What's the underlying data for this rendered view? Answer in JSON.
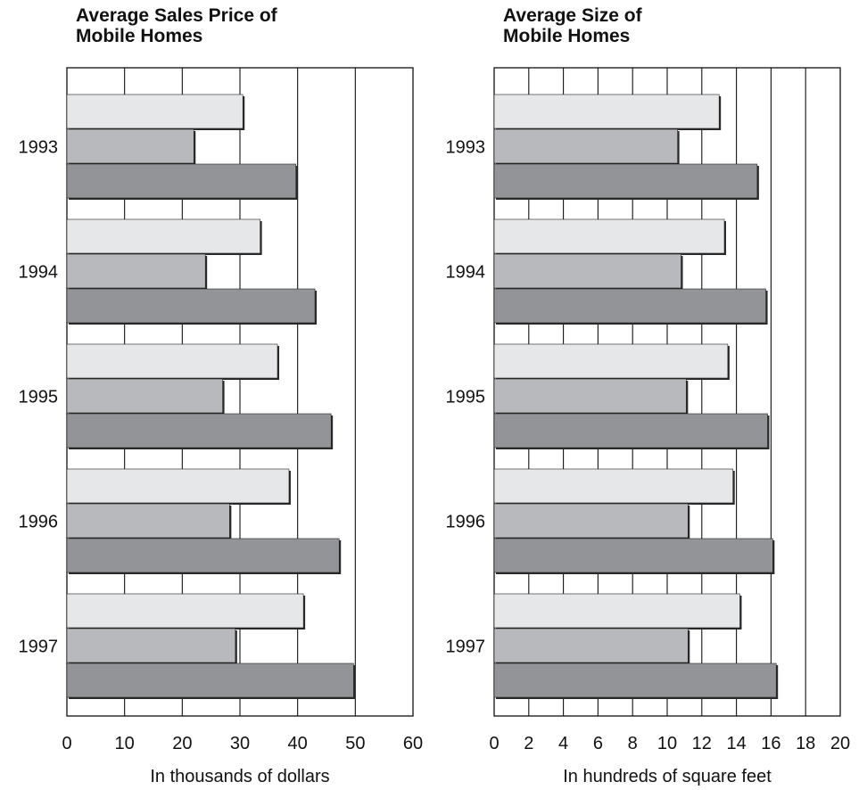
{
  "chart_data": [
    {
      "type": "bar",
      "orientation": "horizontal",
      "title": "Average Sales Price of Mobile Homes",
      "title_lines": [
        "Average Sales Price of",
        "Mobile Homes"
      ],
      "xlabel": "In thousands of dollars",
      "ylabel": "",
      "categories": [
        "1993",
        "1994",
        "1995",
        "1996",
        "1997"
      ],
      "xlim": [
        0,
        60
      ],
      "xticks": [
        "0",
        "10",
        "20",
        "30",
        "40",
        "50",
        "60"
      ],
      "grid": "vertical",
      "series": [
        {
          "color": "#e6e7e9",
          "values": [
            30.5,
            33.5,
            36.5,
            38.5,
            41
          ]
        },
        {
          "color": "#b8b9bd",
          "values": [
            22,
            24,
            27,
            28.2,
            29.2
          ]
        },
        {
          "color": "#939497",
          "values": [
            39.7,
            43,
            45.8,
            47.2,
            49.7
          ]
        }
      ]
    },
    {
      "type": "bar",
      "orientation": "horizontal",
      "title": "Average Size of Mobile Homes",
      "title_lines": [
        "Average Size of",
        "Mobile Homes"
      ],
      "xlabel": "In hundreds of square feet",
      "ylabel": "",
      "categories": [
        "1993",
        "1994",
        "1995",
        "1996",
        "1997"
      ],
      "xlim": [
        0,
        20
      ],
      "xticks": [
        "0",
        "2",
        "4",
        "6",
        "8",
        "10",
        "12",
        "14",
        "16",
        "18",
        "20"
      ],
      "grid": "vertical",
      "series": [
        {
          "color": "#e6e7e9",
          "values": [
            13,
            13.3,
            13.5,
            13.8,
            14.2
          ]
        },
        {
          "color": "#b8b9bd",
          "values": [
            10.6,
            10.8,
            11.1,
            11.2,
            11.2
          ]
        },
        {
          "color": "#939497",
          "values": [
            15.2,
            15.7,
            15.8,
            16.1,
            16.3
          ]
        }
      ]
    }
  ]
}
